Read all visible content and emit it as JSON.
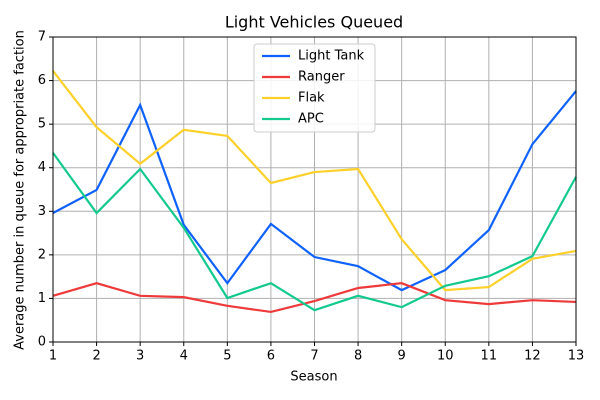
{
  "chart_data": {
    "type": "line",
    "title": "Light Vehicles Queued",
    "x_label": "Season",
    "y_label": "Average number in queue for appropriate faction",
    "x": [
      1,
      2,
      3,
      4,
      5,
      6,
      7,
      8,
      9,
      10,
      11,
      12,
      13
    ],
    "series": [
      {
        "name": "Light Tank",
        "color": "#0f62fe",
        "values": [
          2.96,
          3.49,
          5.44,
          2.69,
          1.35,
          2.71,
          1.95,
          1.74,
          1.19,
          1.65,
          2.57,
          4.54,
          5.76
        ]
      },
      {
        "name": "Ranger",
        "color": "#ee3a3a",
        "values": [
          1.06,
          1.35,
          1.06,
          1.03,
          0.83,
          0.69,
          0.94,
          1.24,
          1.35,
          0.96,
          0.87,
          0.96,
          0.92
        ]
      },
      {
        "name": "Flak",
        "color": "#fdd02a",
        "values": [
          6.22,
          4.93,
          4.09,
          4.87,
          4.73,
          3.65,
          3.9,
          3.97,
          2.36,
          1.19,
          1.26,
          1.91,
          2.09
        ]
      },
      {
        "name": "APC",
        "color": "#14c98e",
        "values": [
          4.34,
          2.96,
          3.97,
          2.62,
          1.01,
          1.35,
          0.73,
          1.06,
          0.8,
          1.29,
          1.51,
          1.97,
          3.79
        ]
      }
    ],
    "xlim": [
      1,
      13
    ],
    "xticks": [
      1,
      2,
      3,
      4,
      5,
      6,
      7,
      8,
      9,
      10,
      11,
      12,
      13
    ],
    "ylim": [
      0,
      7
    ],
    "yticks": [
      0,
      1,
      2,
      3,
      4,
      5,
      6,
      7
    ],
    "grid": true,
    "legend": "upper center"
  }
}
